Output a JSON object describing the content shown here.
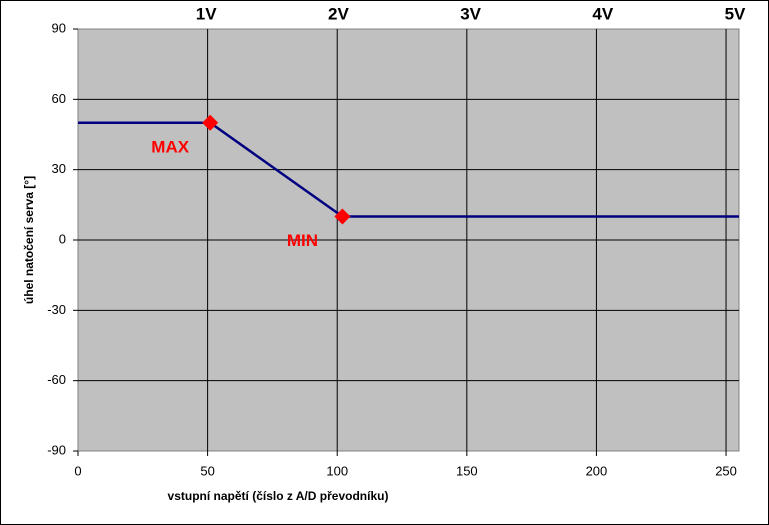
{
  "chart_data": {
    "type": "line",
    "x_label": "vstupní napětí (číslo z A/D převodníku)",
    "y_label": "úhel natočení serva [°]",
    "x": [
      0,
      51,
      102,
      255
    ],
    "series": [
      {
        "color": "#000080",
        "values": [
          50,
          50,
          10,
          10
        ]
      }
    ],
    "xlim": [
      0,
      255
    ],
    "ylim": [
      -90,
      90
    ],
    "xticks": [
      0,
      50,
      100,
      150,
      200,
      250
    ],
    "yticks": [
      -90,
      -60,
      -30,
      0,
      30,
      60,
      90
    ],
    "x2lim": [
      0,
      255
    ],
    "x2ticks": [
      {
        "value": 51,
        "label": "1V"
      },
      {
        "value": 102,
        "label": "2V"
      },
      {
        "value": 153,
        "label": "3V"
      },
      {
        "value": 204,
        "label": "4V"
      },
      {
        "value": 255,
        "label": "5V"
      }
    ],
    "grid": true,
    "annotations": [
      {
        "x": 51,
        "y": 50,
        "label": "MAX"
      },
      {
        "x": 102,
        "y": 10,
        "label": "MIN"
      }
    ],
    "marker_color": "#ff0000",
    "plot_color": "#c0c0c0"
  }
}
